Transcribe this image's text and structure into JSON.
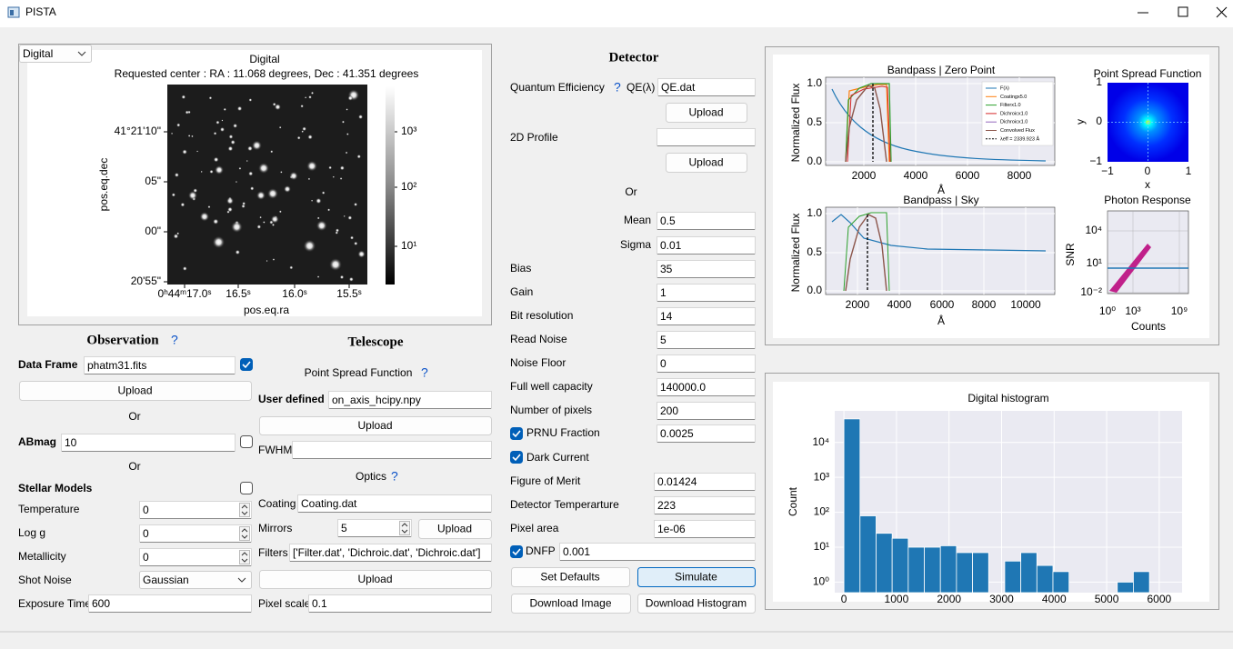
{
  "window": {
    "title": "PISTA"
  },
  "image_panel": {
    "mode": "Digital",
    "title": "Digital",
    "subtitle": "Requested center :  RA : 11.068 degrees, Dec : 41.351 degrees",
    "xlabel": "pos.eq.ra",
    "ylabel": "pos.eq.dec",
    "xticks": [
      "0ʰ44ᵐ17.0ˢ",
      "16.5ˢ",
      "16.0ˢ",
      "15.5ˢ"
    ],
    "yticks": [
      "41°21'10\"",
      "05\"",
      "00\"",
      "20'55\""
    ],
    "colorbar_ticks": [
      "10³",
      "10²",
      "10¹"
    ]
  },
  "observation": {
    "heading": "Observation",
    "help": "?",
    "data_frame": {
      "label": "Data Frame",
      "value": "phatm31.fits",
      "checked": true
    },
    "upload": "Upload",
    "or_1": "Or",
    "abmag": {
      "label": "ABmag",
      "value": "10",
      "checked": false
    },
    "or_2": "Or",
    "stellar_models": {
      "label": "Stellar Models",
      "checked": false
    },
    "fields": [
      {
        "label": "Temperature",
        "value": "0"
      },
      {
        "label": "Log g",
        "value": "0"
      },
      {
        "label": "Metallicity",
        "value": "0"
      }
    ],
    "shot_noise": {
      "label": "Shot Noise",
      "value": "Gaussian"
    },
    "exposure_time": {
      "label": "Exposure Time",
      "value": "600"
    }
  },
  "telescope": {
    "heading": "Telescope",
    "psf_heading": "Point Spread Function",
    "psf_help": "?",
    "user_defined": {
      "label": "User defined",
      "value": "on_axis_hcipy.npy"
    },
    "upload_psf": "Upload",
    "fwhm": {
      "label": "FWHM"
    },
    "optics_heading": "Optics",
    "optics_help": "?",
    "coating": {
      "label": "Coating",
      "value": "Coating.dat"
    },
    "mirrors": {
      "label": "Mirrors",
      "value": "5"
    },
    "upload_mirrors": "Upload",
    "filters": {
      "label": "Filters",
      "value": "['Filter.dat', 'Dichroic.dat', 'Dichroic.dat']"
    },
    "upload_filters": "Upload",
    "pixel_scale": {
      "label": "Pixel scale",
      "value": "0.1"
    }
  },
  "detector": {
    "heading": "Detector",
    "qe": {
      "label": "Quantum Efficiency",
      "help": "?",
      "sublabel": "QE(λ)",
      "value": "QE.dat"
    },
    "upload_qe": "Upload",
    "profile_2d": {
      "label": "2D Profile"
    },
    "upload_profile": "Upload",
    "or": "Or",
    "mean": {
      "label": "Mean",
      "value": "0.5"
    },
    "sigma": {
      "label": "Sigma",
      "value": "0.01"
    },
    "fields": [
      {
        "label": "Bias",
        "value": "35"
      },
      {
        "label": "Gain",
        "value": "1"
      },
      {
        "label": "Bit resolution",
        "value": "14"
      },
      {
        "label": "Read Noise",
        "value": "5"
      },
      {
        "label": "Noise Floor",
        "value": "0"
      },
      {
        "label": "Full well capacity",
        "value": "140000.0"
      },
      {
        "label": "Number of pixels",
        "value": "200"
      }
    ],
    "prnu": {
      "label": "PRNU Fraction",
      "value": "0.0025",
      "checked": true
    },
    "dark_current": {
      "label": "Dark Current",
      "checked": true
    },
    "fields_2": [
      {
        "label": "Figure of Merit",
        "value": "0.01424"
      },
      {
        "label": "Detector Temperarture",
        "value": "223"
      },
      {
        "label": "Pixel area",
        "value": "1e-06"
      }
    ],
    "dnfp": {
      "label": "DNFP",
      "value": "0.001",
      "checked": true
    },
    "buttons": [
      "Set Defaults",
      "Simulate",
      "Download Image",
      "Download Histogram"
    ]
  },
  "plots": {
    "zero_point": {
      "title": "Bandpass | Zero Point",
      "ylabel": "Normalized Flux",
      "xlabel": "Å",
      "yticks": [
        "1.0",
        "0.5",
        "0.0"
      ],
      "xticks": [
        "2000",
        "4000",
        "6000",
        "8000"
      ],
      "legend": [
        "F(λ)",
        "Coatingx5.0",
        "Filterx1.0",
        "Dichroicx1.0",
        "Dichroicx1.0",
        "Convolved Flux",
        "λeff = 2339.923 Å"
      ]
    },
    "sky": {
      "title": "Bandpass | Sky",
      "ylabel": "Normalized Flux",
      "xlabel": "Å",
      "yticks": [
        "1.0",
        "0.5",
        "0.0"
      ],
      "xticks": [
        "2000",
        "4000",
        "6000",
        "8000",
        "10000"
      ]
    },
    "psf": {
      "title": "Point Spread Function",
      "xlabel": "x",
      "ylabel": "y",
      "yticks": [
        "1",
        "0",
        "−1"
      ],
      "xticks": [
        "−1",
        "0",
        "1"
      ]
    },
    "photon": {
      "title": "Photon Response",
      "xlabel": "Counts",
      "ylabel": "SNR",
      "yticks": [
        "10⁴",
        "10¹",
        "10⁻²"
      ],
      "xticks": [
        "10⁰",
        "10³",
        "10⁹"
      ]
    }
  },
  "chart_data": {
    "type": "histogram",
    "title": "Digital histogram",
    "ylabel": "Count",
    "color": "#1f77b4",
    "bins": [
      0,
      306,
      612,
      918,
      1224,
      1530,
      1836,
      2142,
      2448,
      2754,
      3060,
      3366,
      3672,
      3978,
      4284,
      4590,
      4896,
      5202,
      5508,
      5814
    ],
    "values": [
      47000,
      79,
      25,
      18,
      10,
      10,
      11,
      7,
      7,
      0,
      4,
      7,
      3,
      2,
      0,
      0,
      0,
      1,
      2
    ],
    "xlim": [
      -175,
      6435
    ],
    "xticks": [
      0,
      1000,
      2000,
      3000,
      4000,
      5000,
      6000
    ],
    "ylim": [
      0.5,
      80000
    ],
    "log_y": true,
    "grid": true,
    "yticks": [
      {
        "value": 1,
        "label": "10⁰"
      },
      {
        "value": 10,
        "label": "10¹"
      },
      {
        "value": 100,
        "label": "10²"
      },
      {
        "value": 1000,
        "label": "10³"
      },
      {
        "value": 10000,
        "label": "10⁴"
      }
    ]
  }
}
